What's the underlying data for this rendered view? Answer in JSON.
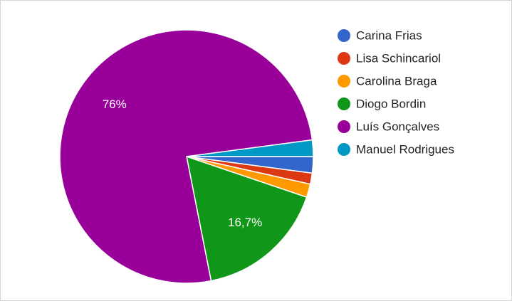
{
  "chart_data": {
    "type": "pie",
    "categories": [
      "Carina Frias",
      "Lisa Schincariol",
      "Carolina Braga",
      "Diogo Bordin",
      "Luís Gonçalves",
      "Manuel Rodrigues"
    ],
    "values": [
      2.1,
      1.4,
      1.7,
      16.7,
      76,
      2.1
    ],
    "value_labels": [
      null,
      null,
      null,
      "16,7%",
      "76%",
      null
    ],
    "colors": [
      "#3366cc",
      "#dc3912",
      "#ff9900",
      "#109618",
      "#990099",
      "#0099c6"
    ],
    "legend": "right"
  }
}
